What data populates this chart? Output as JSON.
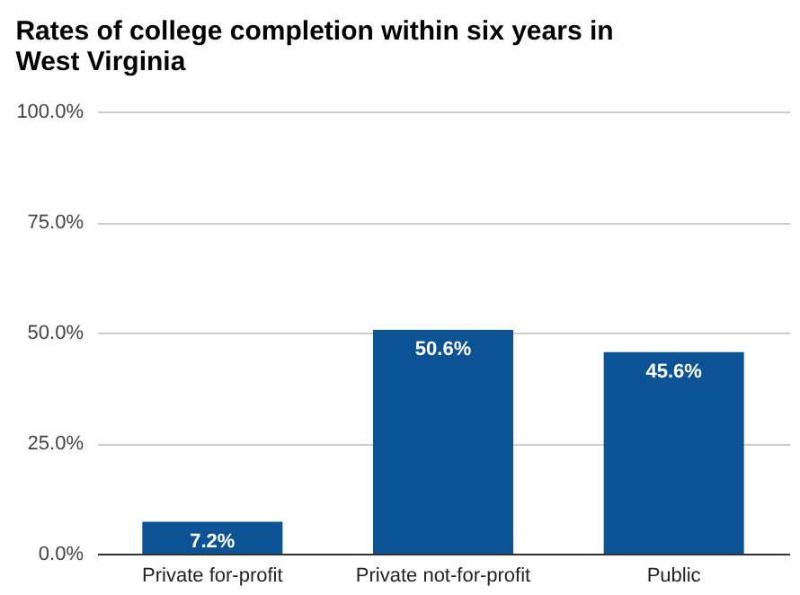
{
  "chart_data": {
    "type": "bar",
    "title": "Rates of college completion within six years in West Virginia",
    "categories": [
      "Private for-profit",
      "Private not-for-profit",
      "Public"
    ],
    "values": [
      7.2,
      50.6,
      45.6
    ],
    "color": "#0b5394",
    "value_labels": [
      "7.2%",
      "50.6%",
      "45.6%"
    ],
    "ylim": [
      0,
      100
    ],
    "yticks": [
      {
        "value": 0,
        "label": "0.0%"
      },
      {
        "value": 25,
        "label": "25.0%"
      },
      {
        "value": 50,
        "label": "50.0%"
      },
      {
        "value": 75,
        "label": "75.0%"
      },
      {
        "value": 100,
        "label": "100.0%"
      }
    ],
    "grid": "y"
  }
}
